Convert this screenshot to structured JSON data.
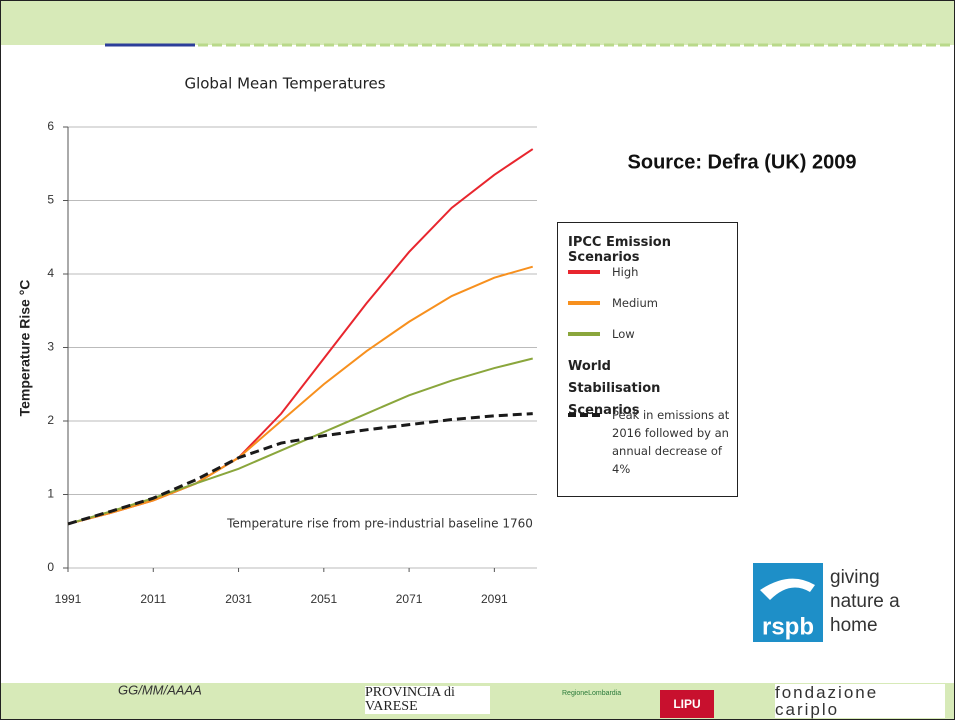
{
  "chart_data": {
    "type": "line",
    "title": "Global Mean Temperatures",
    "y_label": "Temperature Rise °C",
    "annotation": "Temperature rise from pre-industrial baseline 1760",
    "source": "Source: Defra (UK) 2009",
    "legend_groups": [
      "IPCC Emission Scenarios",
      "World Stabilisation Scenarios"
    ],
    "x": [
      1991,
      2001,
      2011,
      2021,
      2031,
      2041,
      2051,
      2061,
      2071,
      2081,
      2091,
      2100
    ],
    "series": [
      {
        "name": "High",
        "color": "#e8262e",
        "values": [
          0.6,
          0.75,
          0.92,
          1.15,
          1.5,
          2.1,
          2.85,
          3.6,
          4.3,
          4.9,
          5.35,
          5.7
        ]
      },
      {
        "name": "Medium",
        "color": "#f7901e",
        "values": [
          0.6,
          0.75,
          0.92,
          1.15,
          1.5,
          2.0,
          2.5,
          2.95,
          3.35,
          3.7,
          3.95,
          4.1
        ]
      },
      {
        "name": "Low",
        "color": "#8aa63c",
        "values": [
          0.6,
          0.77,
          0.95,
          1.15,
          1.35,
          1.6,
          1.85,
          2.1,
          2.35,
          2.55,
          2.72,
          2.85
        ]
      },
      {
        "name": "Peak in emissions at 2016 followed by an annual decrease of 4%",
        "color": "#1a1a1a",
        "dashed": true,
        "values": [
          0.6,
          0.77,
          0.95,
          1.2,
          1.5,
          1.7,
          1.8,
          1.88,
          1.95,
          2.02,
          2.07,
          2.1
        ]
      }
    ],
    "xlim": [
      1991,
      2101
    ],
    "xticks": [
      1991,
      2011,
      2031,
      2051,
      2071,
      2091
    ],
    "ylim": [
      0,
      6
    ],
    "yticks": [
      0,
      1,
      2,
      3,
      4,
      5,
      6
    ],
    "grid": true
  },
  "slide": {
    "date": "GG/MM/AAAA",
    "rspb": "rspb",
    "rspb_tagline": "giving nature a home",
    "logos": [
      "PROVINCIA di VARESE",
      "RegioneLombardia",
      "LIPU",
      "fondazione cariplo"
    ]
  }
}
